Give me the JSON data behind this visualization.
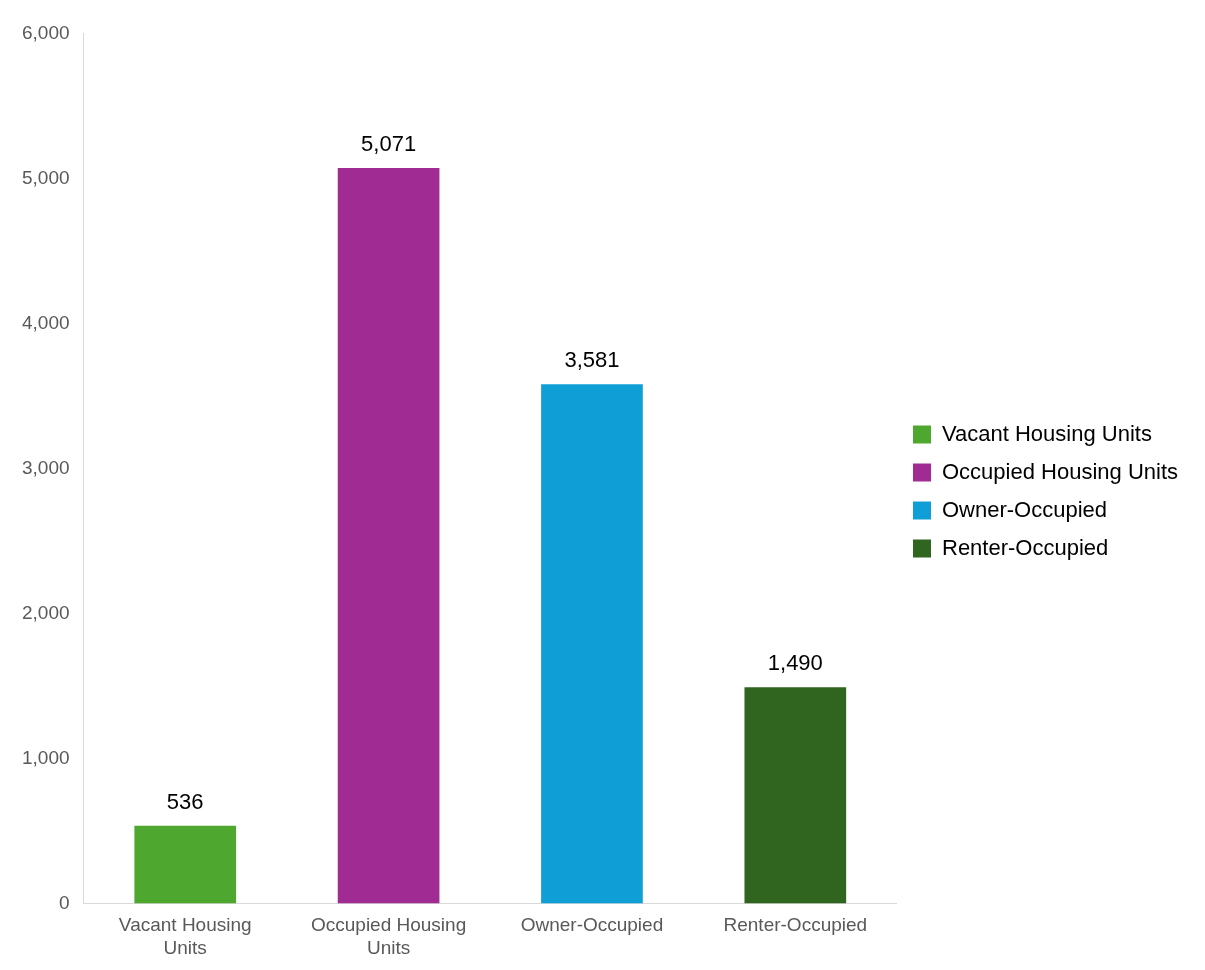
{
  "chart_data": {
    "type": "bar",
    "categories": [
      "Vacant Housing Units",
      "Occupied Housing Units",
      "Owner-Occupied",
      "Renter-Occupied"
    ],
    "series": [
      {
        "name": "Vacant Housing Units",
        "color": "#4ea72e",
        "values": [
          536,
          null,
          null,
          null
        ],
        "value_labels": [
          "536",
          null,
          null,
          null
        ]
      },
      {
        "name": "Occupied Housing Units",
        "color": "#a02b93",
        "values": [
          null,
          5071,
          null,
          null
        ],
        "value_labels": [
          null,
          "5,071",
          null,
          null
        ]
      },
      {
        "name": "Owner-Occupied",
        "color": "#0f9ed5",
        "values": [
          null,
          null,
          3581,
          null
        ],
        "value_labels": [
          null,
          null,
          "3,581",
          null
        ]
      },
      {
        "name": "Renter-Occupied",
        "color": "#306520",
        "values": [
          null,
          null,
          null,
          1490
        ],
        "value_labels": [
          null,
          null,
          null,
          "1,490"
        ]
      }
    ],
    "ylim": [
      0,
      6000
    ],
    "yticks": [
      {
        "value": 0,
        "label": "0"
      },
      {
        "value": 1000,
        "label": "1,000"
      },
      {
        "value": 2000,
        "label": "2,000"
      },
      {
        "value": 3000,
        "label": "3,000"
      },
      {
        "value": 4000,
        "label": "4,000"
      },
      {
        "value": 5000,
        "label": "5,000"
      },
      {
        "value": 6000,
        "label": "6,000"
      }
    ],
    "grid": false,
    "legend": "right"
  }
}
